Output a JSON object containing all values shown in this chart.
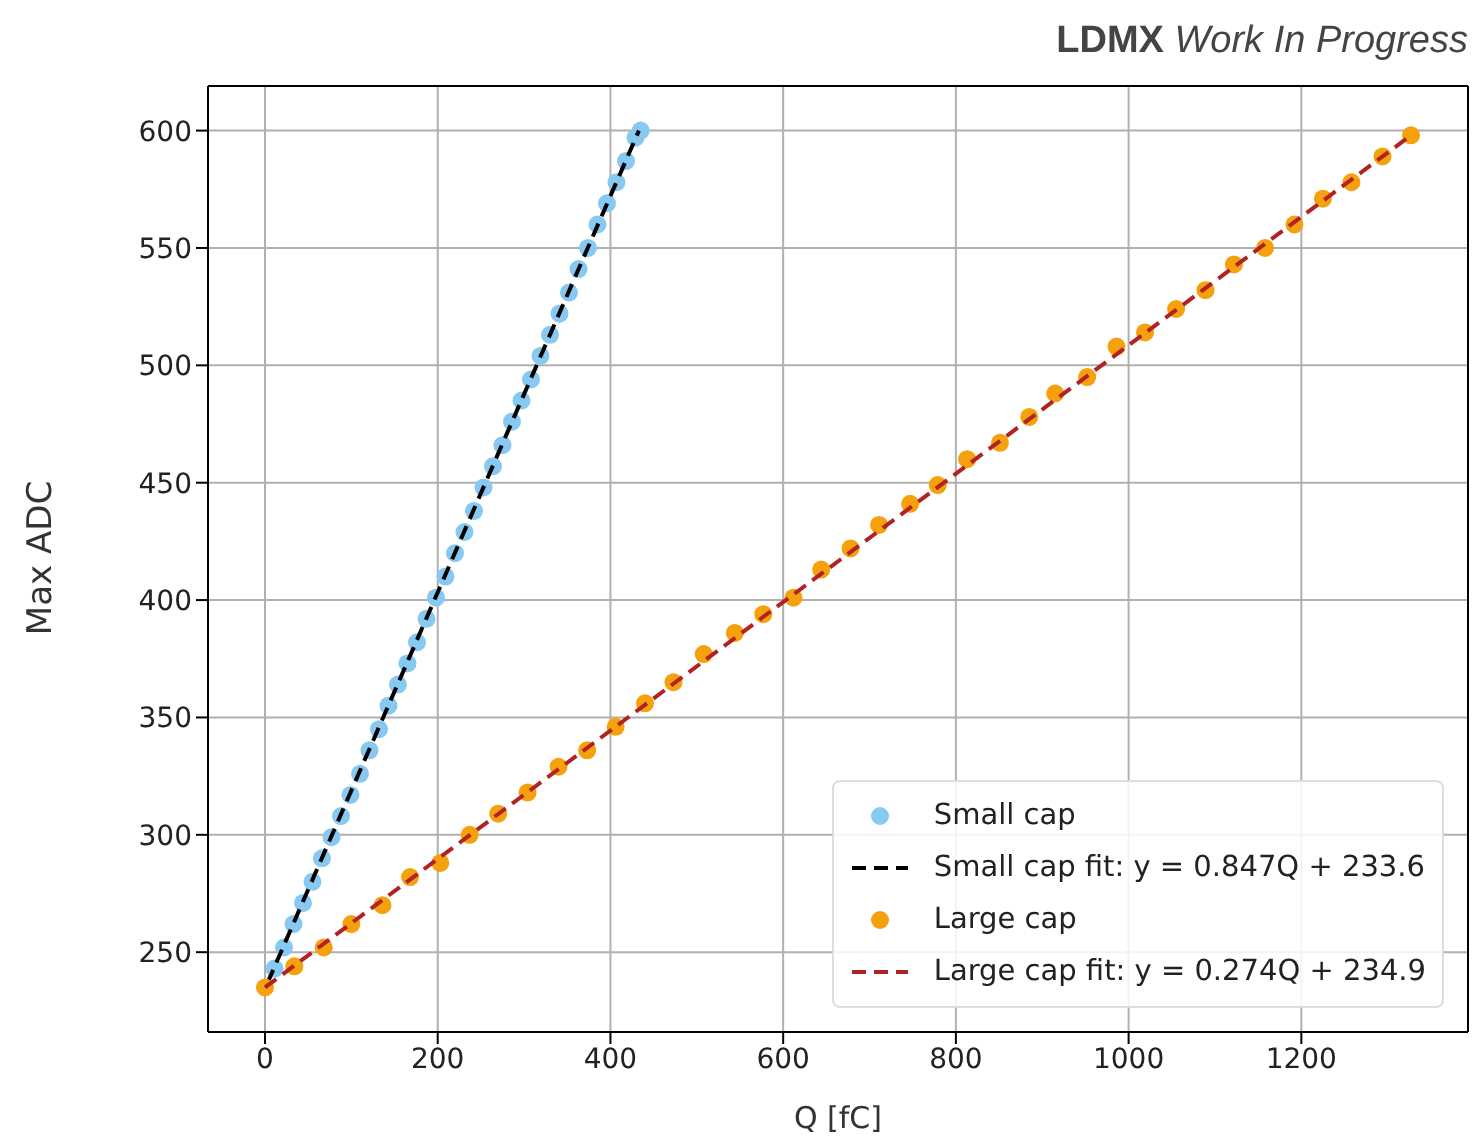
{
  "chart_data": {
    "type": "scatter",
    "xlabel": "Q [fC]",
    "ylabel": "Max ADC",
    "annotations": [
      "LDMX",
      "Work In Progress"
    ],
    "xlim": [
      -66,
      1393
    ],
    "ylim": [
      216,
      619
    ],
    "xticks": [
      0,
      200,
      400,
      600,
      800,
      1000,
      1200
    ],
    "yticks": [
      250,
      300,
      350,
      400,
      450,
      500,
      550,
      600
    ],
    "grid": true,
    "legend": "bottom right",
    "marker": "circle",
    "series": [
      {
        "name": "Small cap",
        "type": "scatter",
        "color": "#87c9f1",
        "x": [
          11,
          22,
          33,
          44,
          55,
          66,
          77,
          88,
          99,
          110,
          121,
          132,
          143,
          154,
          165,
          176,
          187,
          198,
          209,
          220,
          231,
          242,
          253,
          264,
          275,
          286,
          297,
          308,
          319,
          330,
          341,
          352,
          363,
          374,
          385,
          396,
          407,
          418,
          429,
          435
        ],
        "values": [
          243,
          252,
          262,
          271,
          280,
          290,
          299,
          308,
          317,
          326,
          336,
          345,
          355,
          364,
          373,
          382,
          392,
          401,
          410,
          420,
          429,
          438,
          448,
          457,
          466,
          476,
          485,
          494,
          504,
          513,
          522,
          531,
          541,
          550,
          560,
          569,
          578,
          587,
          597,
          600
        ]
      },
      {
        "name": "Small cap fit: y = 0.847Q + 233.6",
        "type": "line",
        "line_style": "dashed",
        "marker": "none",
        "color": "#000000",
        "x": [
          3,
          433
        ],
        "values": [
          237,
          600
        ]
      },
      {
        "name": "Large cap",
        "type": "scatter",
        "color": "#f5a00d",
        "x": [
          0,
          34,
          68,
          100,
          136,
          168,
          203,
          237,
          270,
          304,
          340,
          373,
          406,
          440,
          473,
          508,
          544,
          577,
          612,
          644,
          678,
          711,
          747,
          779,
          813,
          851,
          885,
          915,
          952,
          986,
          1019,
          1055,
          1089,
          1122,
          1158,
          1192,
          1225,
          1258,
          1294,
          1327
        ],
        "values": [
          235,
          244,
          252,
          262,
          270,
          282,
          288,
          300,
          309,
          318,
          329,
          336,
          346,
          356,
          365,
          377,
          386,
          394,
          401,
          413,
          422,
          432,
          441,
          449,
          460,
          467,
          478,
          488,
          495,
          508,
          514,
          524,
          532,
          543,
          550,
          560,
          571,
          578,
          589,
          598
        ]
      },
      {
        "name": "Large cap fit: y = 0.274Q + 234.9",
        "type": "line",
        "line_style": "dashed",
        "marker": "none",
        "color": "#b22222",
        "x": [
          0,
          1327
        ],
        "values": [
          235,
          598
        ]
      }
    ]
  }
}
